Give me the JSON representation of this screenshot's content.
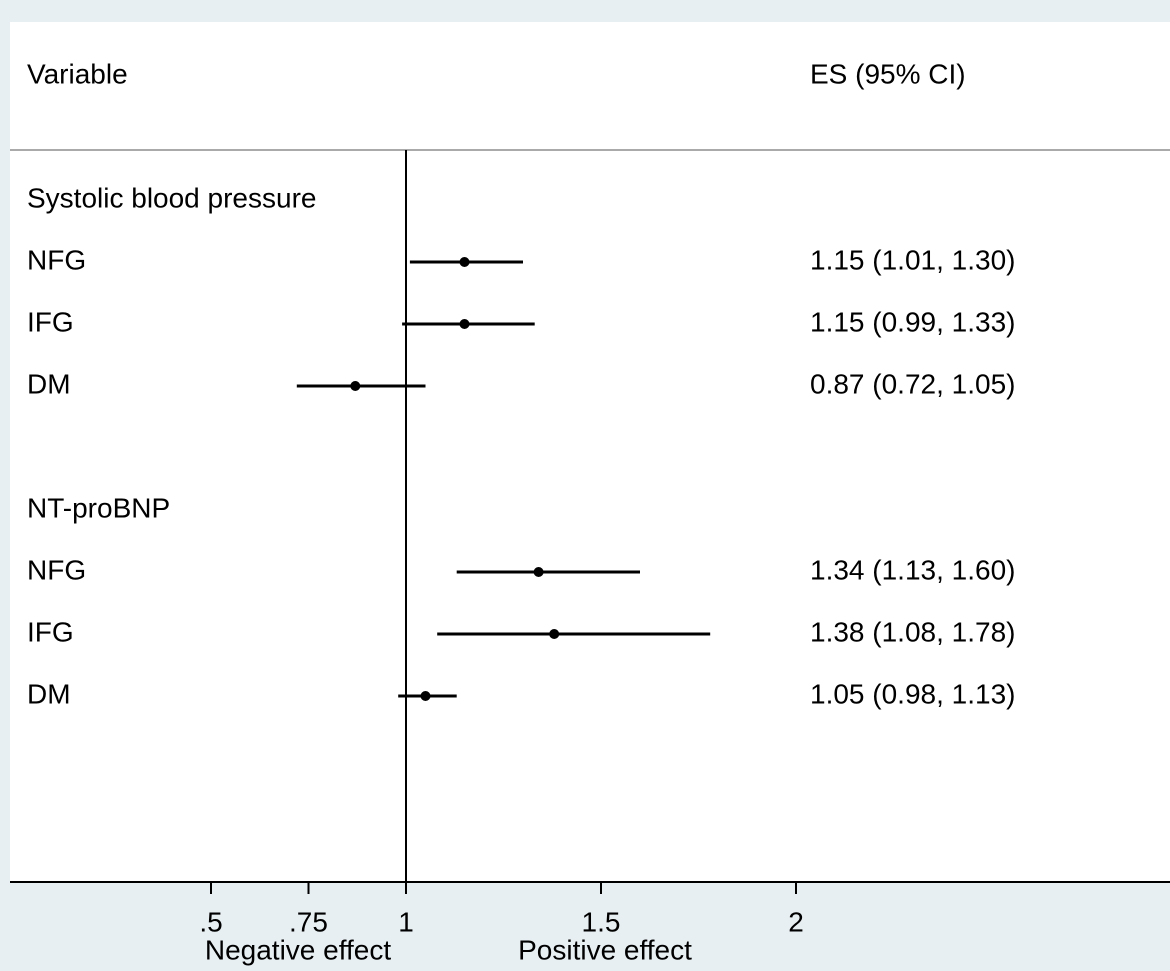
{
  "chart_data": {
    "type": "forest",
    "column_headers": [
      "Variable",
      "ES (95% CI)"
    ],
    "groups": [
      {
        "name": "Systolic blood pressure",
        "rows": [
          {
            "label": "NFG",
            "es": 1.15,
            "ci": [
              1.01,
              1.3
            ],
            "value_label": "1.15 (1.01, 1.30)"
          },
          {
            "label": "IFG",
            "es": 1.15,
            "ci": [
              0.99,
              1.33
            ],
            "value_label": "1.15 (0.99, 1.33)"
          },
          {
            "label": "DM",
            "es": 0.87,
            "ci": [
              0.72,
              1.05
            ],
            "value_label": "0.87 (0.72, 1.05)"
          }
        ]
      },
      {
        "name": "NT-proBNP",
        "rows": [
          {
            "label": "NFG",
            "es": 1.34,
            "ci": [
              1.13,
              1.6
            ],
            "value_label": "1.34 (1.13, 1.60)"
          },
          {
            "label": "IFG",
            "es": 1.38,
            "ci": [
              1.08,
              1.78
            ],
            "value_label": "1.38 (1.08, 1.78)"
          },
          {
            "label": "DM",
            "es": 1.05,
            "ci": [
              0.98,
              1.13
            ],
            "value_label": "1.05 (0.98, 1.13)"
          }
        ]
      }
    ],
    "null_value": 1,
    "xlim": [
      0,
      2.95
    ],
    "xticks": [
      {
        "value": 0.5,
        "label": ".5"
      },
      {
        "value": 0.75,
        "label": ".75"
      },
      1,
      1.5,
      2
    ],
    "x_notes": [
      "Negative effect",
      "Positive effect"
    ],
    "color": "#000000"
  }
}
